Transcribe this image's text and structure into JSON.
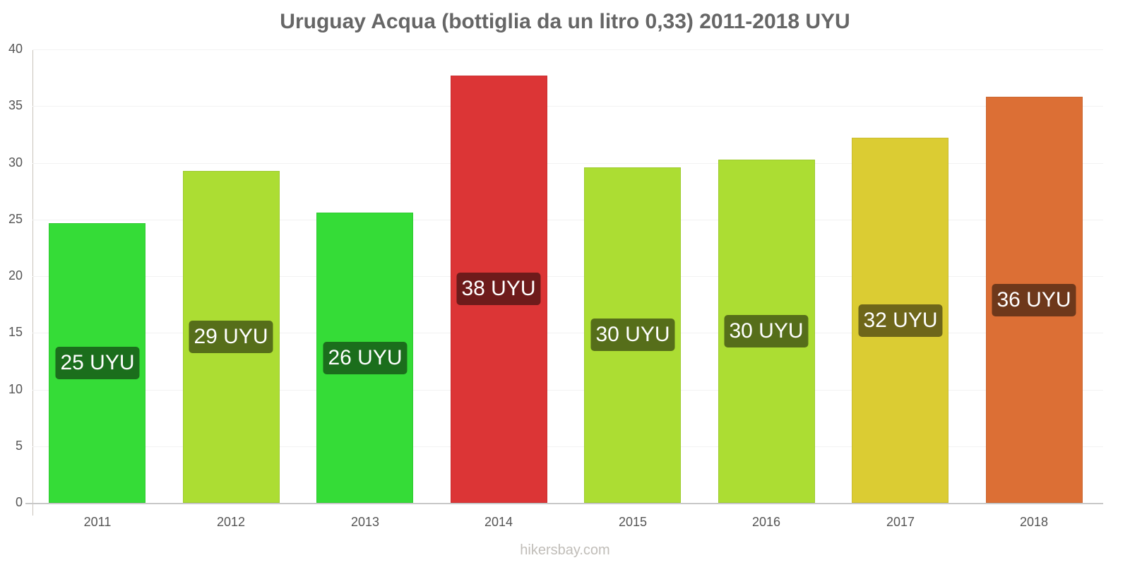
{
  "title": "Uruguay Acqua (bottiglia da un litro 0,33) 2011-2018 UYU",
  "watermark": "hikersbay.com",
  "y_ticks": [
    "0",
    "5",
    "10",
    "15",
    "20",
    "25",
    "30",
    "35",
    "40"
  ],
  "chart_data": {
    "type": "bar",
    "title": "Uruguay Acqua (bottiglia da un litro 0,33) 2011-2018 UYU",
    "xlabel": "",
    "ylabel": "",
    "ylim": [
      0,
      40
    ],
    "y_ticks": [
      0,
      5,
      10,
      15,
      20,
      25,
      30,
      35,
      40
    ],
    "grid": true,
    "legend": null,
    "categories": [
      "2011",
      "2012",
      "2013",
      "2014",
      "2015",
      "2016",
      "2017",
      "2018"
    ],
    "values": [
      24.7,
      29.3,
      25.6,
      37.7,
      29.6,
      30.3,
      32.2,
      35.8
    ],
    "data_labels": [
      "25 UYU",
      "29 UYU",
      "26 UYU",
      "38 UYU",
      "30 UYU",
      "30 UYU",
      "32 UYU",
      "36 UYU"
    ],
    "bar_colors": [
      "#35dc37",
      "#acdd33",
      "#35dc37",
      "#dc3536",
      "#acdd33",
      "#acdd33",
      "#dbcc33",
      "#dc6f35"
    ],
    "label_colors": [
      "#1b6e1c",
      "#566e1a",
      "#1b6e1c",
      "#6e1b1b",
      "#566e1a",
      "#566e1a",
      "#6e661a",
      "#6e381b"
    ],
    "units": "UYU"
  }
}
